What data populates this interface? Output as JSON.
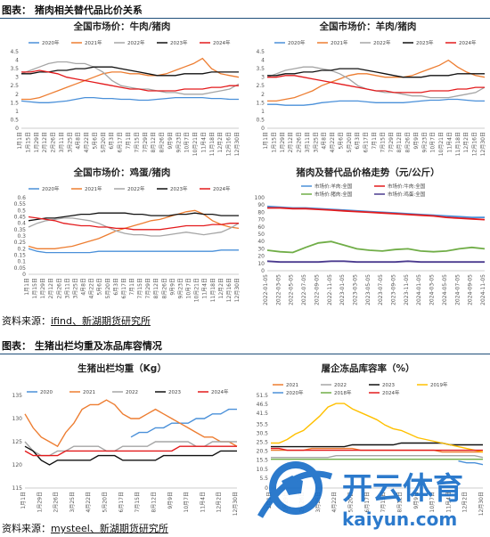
{
  "header1": {
    "title": "图表：  猪肉相关替代品比价关系"
  },
  "header2": {
    "title": "图表：  生猪出栏均重及冻品库容情况"
  },
  "source1": {
    "prefix": "资料来源：",
    "text": "ifind、新湖期货研究所"
  },
  "source2": {
    "prefix": "资料来源：",
    "text": "mysteel、新湖期货研究所"
  },
  "watermark": {
    "cn": "开云体育",
    "en": "kaiyun.com"
  },
  "months": [
    "1月1日",
    "1月15日",
    "1月29日",
    "2月12日",
    "2月26日",
    "3月11日",
    "3月25日",
    "4月8日",
    "4月22日",
    "5月6日",
    "5月20日",
    "6月3日",
    "6月17日",
    "7月1日",
    "7月15日",
    "7月29日",
    "8月12日",
    "8月26日",
    "9月9日",
    "9月23日",
    "10月7日",
    "10月21日",
    "11月4日",
    "11月18日",
    "12月2日",
    "12月16日",
    "12月30日"
  ],
  "colors": {
    "2020": "#4a90d9",
    "2021": "#ed7d31",
    "2022": "#a5a5a5",
    "2023": "#111111",
    "2024": "#e31a1c",
    "2019": "#ffc000",
    "2018": "#70ad47"
  },
  "chart_data": [
    {
      "type": "line",
      "title": "全国市场价：牛肉/猪肉",
      "ylim": [
        0,
        4.5
      ],
      "yticks": [
        0,
        0.5,
        1,
        1.5,
        2,
        2.5,
        3,
        3.5,
        4,
        4.5
      ],
      "series": [
        {
          "name": "2020年",
          "values": [
            1.6,
            1.55,
            1.5,
            1.5,
            1.55,
            1.6,
            1.7,
            1.8,
            1.8,
            1.75,
            1.75,
            1.7,
            1.7,
            1.65,
            1.65,
            1.7,
            1.75,
            1.8,
            1.8,
            1.8,
            1.8,
            1.75,
            1.75,
            1.7,
            1.7
          ]
        },
        {
          "name": "2021年",
          "values": [
            1.7,
            1.7,
            1.8,
            2.0,
            2.2,
            2.4,
            2.6,
            2.8,
            3.0,
            3.2,
            3.3,
            3.3,
            3.2,
            3.2,
            3.1,
            3.1,
            3.2,
            3.4,
            3.6,
            3.8,
            4.1,
            3.5,
            3.2,
            3.1,
            3.0
          ]
        },
        {
          "name": "2022年",
          "values": [
            3.2,
            3.4,
            3.6,
            3.8,
            3.9,
            3.9,
            3.8,
            3.8,
            3.6,
            3.3,
            2.8,
            2.5,
            2.4,
            2.3,
            2.3,
            2.2,
            2.1,
            2.1,
            2.0,
            2.0,
            2.0,
            2.1,
            2.2,
            2.3,
            2.6
          ]
        },
        {
          "name": "2023年",
          "values": [
            3.2,
            3.2,
            3.3,
            3.3,
            3.4,
            3.4,
            3.5,
            3.5,
            3.6,
            3.6,
            3.6,
            3.5,
            3.4,
            3.3,
            3.2,
            3.1,
            3.1,
            3.1,
            3.2,
            3.2,
            3.2,
            3.3,
            3.3,
            3.3,
            3.3
          ]
        },
        {
          "name": "2024年",
          "values": [
            3.3,
            3.3,
            3.4,
            3.3,
            3.2,
            3.0,
            2.9,
            2.8,
            2.7,
            2.6,
            2.5,
            2.4,
            2.3,
            2.3,
            2.2,
            2.2,
            2.2,
            2.2,
            2.3,
            2.3,
            2.3,
            2.4,
            2.4,
            2.5,
            2.5
          ]
        }
      ]
    },
    {
      "type": "line",
      "title": "全国市场价：羊肉/猪肉",
      "ylim": [
        0,
        4.5
      ],
      "yticks": [
        0,
        0.5,
        1,
        1.5,
        2,
        2.5,
        3,
        3.5,
        4,
        4.5
      ],
      "series": [
        {
          "name": "2020年",
          "values": [
            1.4,
            1.4,
            1.35,
            1.35,
            1.35,
            1.4,
            1.5,
            1.55,
            1.6,
            1.6,
            1.6,
            1.55,
            1.5,
            1.5,
            1.5,
            1.5,
            1.55,
            1.6,
            1.65,
            1.65,
            1.7,
            1.7,
            1.65,
            1.6,
            1.6
          ]
        },
        {
          "name": "2021年",
          "values": [
            1.6,
            1.6,
            1.7,
            1.8,
            2.0,
            2.2,
            2.5,
            2.7,
            2.9,
            3.1,
            3.2,
            3.2,
            3.1,
            3.0,
            3.0,
            3.0,
            3.1,
            3.3,
            3.5,
            3.7,
            4.0,
            3.6,
            3.3,
            3.1,
            3.0
          ]
        },
        {
          "name": "2022年",
          "values": [
            3.0,
            3.2,
            3.4,
            3.5,
            3.6,
            3.6,
            3.5,
            3.4,
            3.2,
            2.9,
            2.5,
            2.3,
            2.2,
            2.1,
            2.1,
            2.0,
            1.9,
            1.9,
            1.8,
            1.8,
            1.8,
            1.9,
            2.0,
            2.1,
            2.4
          ]
        },
        {
          "name": "2023年",
          "values": [
            3.1,
            3.1,
            3.2,
            3.2,
            3.3,
            3.3,
            3.4,
            3.4,
            3.5,
            3.5,
            3.5,
            3.4,
            3.3,
            3.2,
            3.1,
            3.0,
            3.0,
            3.0,
            3.1,
            3.1,
            3.1,
            3.2,
            3.2,
            3.2,
            3.2
          ]
        },
        {
          "name": "2024年",
          "values": [
            3.0,
            3.0,
            3.1,
            3.1,
            3.0,
            2.9,
            2.8,
            2.7,
            2.6,
            2.5,
            2.4,
            2.3,
            2.2,
            2.2,
            2.1,
            2.1,
            2.1,
            2.1,
            2.2,
            2.2,
            2.2,
            2.3,
            2.3,
            2.4,
            2.4
          ]
        }
      ]
    },
    {
      "type": "line",
      "title": "全国市场价：鸡蛋/猪肉",
      "ylim": [
        0,
        0.6
      ],
      "yticks": [
        0,
        0.05,
        0.1,
        0.15,
        0.2,
        0.25,
        0.3,
        0.35,
        0.4,
        0.45,
        0.5,
        0.55,
        0.6
      ],
      "series": [
        {
          "name": "2020年",
          "values": [
            0.2,
            0.18,
            0.17,
            0.17,
            0.17,
            0.17,
            0.17,
            0.17,
            0.18,
            0.18,
            0.18,
            0.18,
            0.18,
            0.18,
            0.18,
            0.18,
            0.18,
            0.18,
            0.18,
            0.18,
            0.18,
            0.18,
            0.19,
            0.19,
            0.19
          ]
        },
        {
          "name": "2021年",
          "values": [
            0.22,
            0.2,
            0.2,
            0.2,
            0.21,
            0.22,
            0.24,
            0.26,
            0.28,
            0.31,
            0.34,
            0.36,
            0.38,
            0.4,
            0.42,
            0.43,
            0.45,
            0.47,
            0.49,
            0.5,
            0.47,
            0.42,
            0.39,
            0.37,
            0.36
          ]
        },
        {
          "name": "2022年",
          "values": [
            0.37,
            0.4,
            0.42,
            0.43,
            0.44,
            0.44,
            0.43,
            0.42,
            0.4,
            0.37,
            0.34,
            0.32,
            0.31,
            0.31,
            0.3,
            0.3,
            0.31,
            0.32,
            0.33,
            0.32,
            0.31,
            0.32,
            0.33,
            0.36,
            0.4
          ]
        },
        {
          "name": "2023年",
          "values": [
            0.42,
            0.43,
            0.44,
            0.44,
            0.45,
            0.46,
            0.47,
            0.47,
            0.48,
            0.48,
            0.48,
            0.48,
            0.47,
            0.47,
            0.46,
            0.46,
            0.46,
            0.47,
            0.47,
            0.48,
            0.47,
            0.47,
            0.46,
            0.46,
            0.46
          ]
        },
        {
          "name": "2024年",
          "values": [
            0.45,
            0.44,
            0.43,
            0.42,
            0.4,
            0.39,
            0.38,
            0.38,
            0.37,
            0.37,
            0.36,
            0.36,
            0.35,
            0.35,
            0.35,
            0.35,
            0.36,
            0.37,
            0.38,
            0.38,
            0.38,
            0.39,
            0.39,
            0.4,
            0.4
          ]
        }
      ]
    },
    {
      "type": "line",
      "title": "猪肉及替代品价格走势（元/公斤）",
      "ylim": [
        0,
        100
      ],
      "yticks": [
        0,
        10,
        20,
        30,
        40,
        50,
        60,
        70,
        80,
        90,
        100
      ],
      "categories": [
        "2022-01-05",
        "2022-03-05",
        "2022-05-05",
        "2022-07-05",
        "2022-09-05",
        "2022-11-05",
        "2023-01-05",
        "2023-03-05",
        "2023-05-05",
        "2023-07-05",
        "2023-09-05",
        "2023-11-05",
        "2024-01-05",
        "2024-03-05",
        "2024-05-05",
        "2024-07-05",
        "2024-09-05",
        "2024-11-05"
      ],
      "series": [
        {
          "name": "市场价:羊肉:全国",
          "color": "#4a90d9",
          "values": [
            88,
            87,
            86,
            86,
            85,
            84,
            83,
            82,
            81,
            80,
            79,
            78,
            77,
            76,
            75,
            74,
            73,
            73
          ]
        },
        {
          "name": "市场价:牛肉:全国",
          "color": "#e31a1c",
          "values": [
            86,
            86,
            85,
            85,
            84,
            83,
            82,
            81,
            80,
            79,
            78,
            77,
            76,
            75,
            73,
            72,
            71,
            70
          ]
        },
        {
          "name": "市场价:猪肉:全国",
          "color": "#70ad47",
          "values": [
            28,
            26,
            25,
            32,
            38,
            40,
            35,
            30,
            28,
            27,
            29,
            30,
            27,
            26,
            27,
            30,
            32,
            30
          ]
        },
        {
          "name": "市场价:鸡蛋:全国",
          "color": "#4b3b8f",
          "values": [
            13,
            12,
            12,
            12,
            12,
            13,
            13,
            12,
            12,
            12,
            12,
            13,
            12,
            12,
            12,
            12,
            12,
            12
          ]
        }
      ]
    },
    {
      "type": "line",
      "title": "生猪出栏均重（Kg）",
      "ylim": [
        115,
        135
      ],
      "yticks": [
        115,
        120,
        125,
        130,
        135
      ],
      "series": [
        {
          "name": "2020",
          "values": [
            null,
            null,
            null,
            null,
            null,
            null,
            null,
            null,
            null,
            null,
            null,
            null,
            null,
            126,
            127,
            127,
            128,
            128,
            129,
            129,
            129,
            130,
            130,
            131,
            131,
            132,
            132
          ]
        },
        {
          "name": "2021",
          "values": [
            131,
            128,
            126,
            125,
            124,
            127,
            129,
            132,
            133,
            133,
            134,
            133,
            131,
            130,
            130,
            131,
            132,
            131,
            130,
            129,
            128,
            127,
            126,
            126,
            125,
            125,
            124
          ]
        },
        {
          "name": "2022",
          "values": [
            125,
            123,
            122,
            122,
            123,
            123,
            124,
            124,
            124,
            124,
            123,
            123,
            124,
            124,
            124,
            124,
            125,
            125,
            125,
            125,
            125,
            124,
            124,
            125,
            125,
            125,
            125
          ]
        },
        {
          "name": "2023",
          "values": [
            124,
            123,
            121,
            120,
            121,
            121,
            121,
            121,
            121,
            122,
            122,
            122,
            121,
            121,
            121,
            121,
            121,
            122,
            122,
            122,
            122,
            122,
            122,
            122,
            123,
            123,
            123
          ]
        },
        {
          "name": "2024年",
          "values": [
            123,
            122,
            122,
            122,
            122,
            123,
            123,
            123,
            123,
            123,
            123,
            123,
            123,
            123,
            123,
            123,
            123,
            123,
            123,
            124,
            124,
            124,
            124,
            124,
            124,
            124,
            124
          ]
        }
      ]
    },
    {
      "type": "line",
      "title": "屠企冻品库容率（%）",
      "ylim": [
        0,
        51.5
      ],
      "yticks": [
        0,
        5.5,
        10.5,
        15.5,
        20.5,
        25.5,
        30.5,
        35.5,
        41.5,
        46.5,
        51.5
      ],
      "series": [
        {
          "name": "2021",
          "values": [
            21,
            21,
            21,
            21,
            21,
            22,
            22,
            22,
            22,
            22,
            22,
            21,
            21,
            21,
            21,
            21,
            21,
            21,
            21,
            21,
            21,
            20,
            20,
            20,
            20,
            20,
            20
          ]
        },
        {
          "name": "2022",
          "values": [
            17,
            17,
            17,
            17,
            17,
            17,
            17,
            17,
            18,
            18,
            18,
            18,
            18,
            18,
            18,
            18,
            18,
            18,
            18,
            18,
            18,
            18,
            18,
            18,
            18,
            18,
            17
          ]
        },
        {
          "name": "2023",
          "values": [
            23,
            23,
            23,
            23,
            23,
            23,
            23,
            23,
            23,
            23,
            24,
            24,
            24,
            24,
            24,
            24,
            25,
            25,
            25,
            25,
            25,
            25,
            24,
            24,
            24,
            24,
            24
          ]
        },
        {
          "name": "2019年",
          "values": [
            25,
            25,
            27,
            30,
            32,
            36,
            40,
            45,
            47,
            47,
            44,
            42,
            40,
            38,
            35,
            33,
            32,
            30,
            28,
            27,
            26,
            25,
            24,
            23,
            22,
            21,
            20
          ]
        },
        {
          "name": "2020年",
          "values": [
            null,
            null,
            null,
            null,
            null,
            null,
            null,
            null,
            null,
            null,
            null,
            null,
            null,
            null,
            null,
            null,
            null,
            null,
            null,
            null,
            null,
            null,
            null,
            15,
            14,
            14,
            13
          ]
        },
        {
          "name": "2018年",
          "values": [
            16,
            16,
            16,
            16,
            16,
            16,
            16,
            16,
            16,
            16,
            16,
            16,
            16,
            16,
            16,
            16,
            16,
            16,
            16,
            16,
            16,
            16,
            16,
            16,
            16,
            16,
            16
          ]
        },
        {
          "name": "2024年",
          "values": [
            22,
            22,
            21,
            21,
            21,
            21,
            21,
            21,
            21,
            21,
            21,
            21,
            21,
            21,
            21,
            21,
            21,
            21,
            21,
            21,
            21,
            21,
            21,
            21,
            21,
            21,
            21
          ]
        }
      ]
    }
  ]
}
